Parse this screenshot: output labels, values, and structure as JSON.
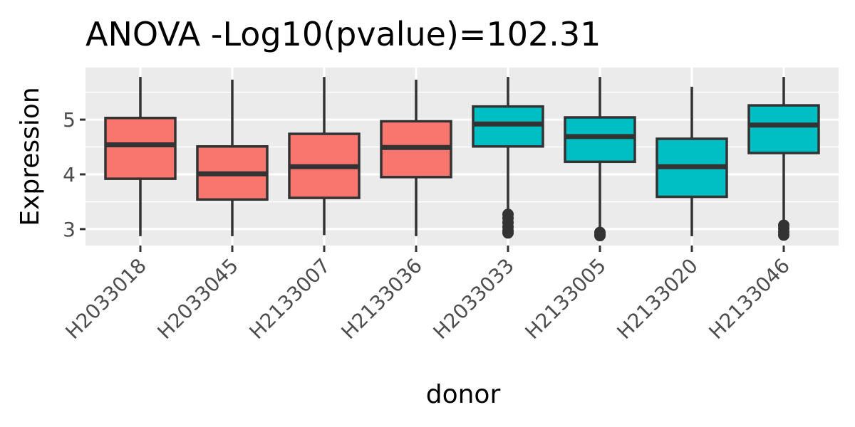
{
  "chart_data": {
    "type": "box",
    "title": "ANOVA -Log10(pvalue)=102.31",
    "xlabel": "donor",
    "ylabel": "Expression",
    "ylim": [
      2.7,
      5.95
    ],
    "y_ticks": [
      3,
      4,
      5
    ],
    "y_minor_ticks": [
      3.5,
      4.5,
      5.5
    ],
    "grid": true,
    "panel_background": "#EBEBEB",
    "grid_color": "#FFFFFF",
    "box_outline_color": "#333333",
    "groups": [
      {
        "color": "#F8766D"
      },
      {
        "color": "#00BFC4"
      }
    ],
    "categories": [
      "H2033018",
      "H2033045",
      "H2133007",
      "H2133036",
      "H2033033",
      "H2133005",
      "H2133020",
      "H2133046"
    ],
    "boxes": [
      {
        "category": "H2033018",
        "group": 0,
        "min": 2.87,
        "q1": 3.92,
        "median": 4.54,
        "q3": 5.03,
        "max": 5.78,
        "outliers": []
      },
      {
        "category": "H2033045",
        "group": 0,
        "min": 2.87,
        "q1": 3.54,
        "median": 4.01,
        "q3": 4.51,
        "max": 5.73,
        "outliers": []
      },
      {
        "category": "H2133007",
        "group": 0,
        "min": 2.89,
        "q1": 3.57,
        "median": 4.14,
        "q3": 4.74,
        "max": 5.78,
        "outliers": []
      },
      {
        "category": "H2133036",
        "group": 0,
        "min": 2.87,
        "q1": 3.95,
        "median": 4.49,
        "q3": 4.97,
        "max": 5.73,
        "outliers": []
      },
      {
        "category": "H2033033",
        "group": 1,
        "min": 3.33,
        "q1": 4.51,
        "median": 4.92,
        "q3": 5.24,
        "max": 5.78,
        "outliers": [
          3.27,
          3.2,
          3.12,
          3.04,
          2.97,
          2.93
        ]
      },
      {
        "category": "H2133005",
        "group": 1,
        "min": 2.98,
        "q1": 4.23,
        "median": 4.69,
        "q3": 5.04,
        "max": 5.78,
        "outliers": [
          2.94,
          2.91,
          2.88
        ]
      },
      {
        "category": "H2133020",
        "group": 1,
        "min": 2.87,
        "q1": 3.59,
        "median": 4.14,
        "q3": 4.65,
        "max": 5.6,
        "outliers": []
      },
      {
        "category": "H2133046",
        "group": 1,
        "min": 3.13,
        "q1": 4.39,
        "median": 4.9,
        "q3": 5.26,
        "max": 5.78,
        "outliers": [
          3.07,
          3.01,
          2.95,
          2.89
        ]
      }
    ]
  }
}
